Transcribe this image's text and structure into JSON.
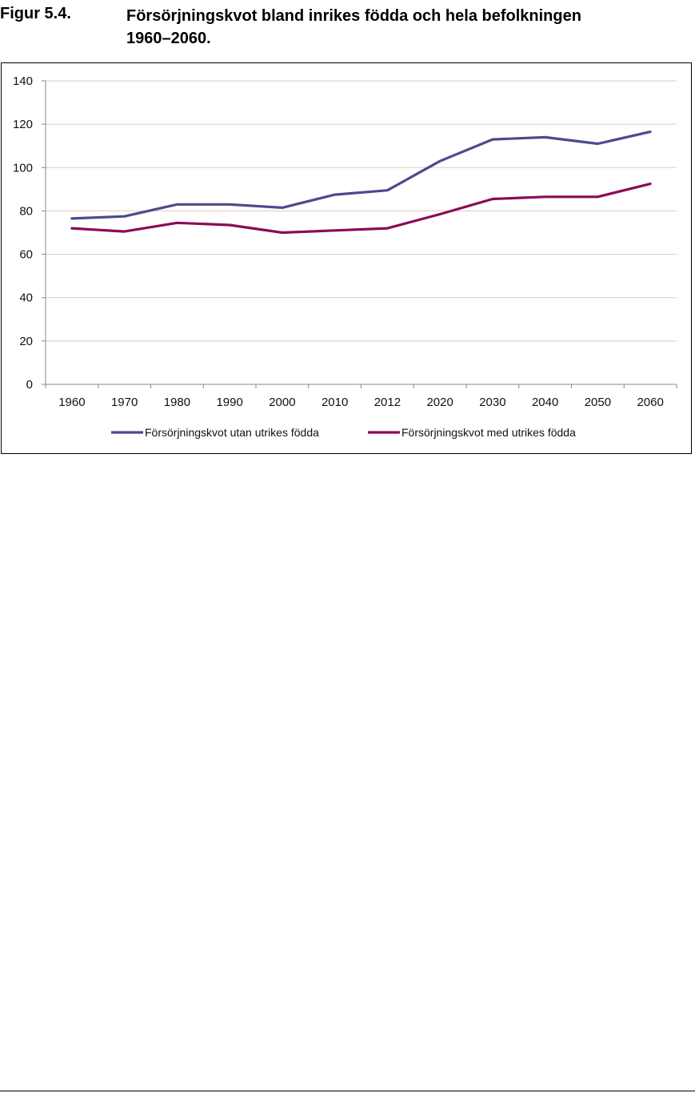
{
  "figure": {
    "number": "Figur 5.4.",
    "title_line1": "Försörjningskvot bland inrikes födda och hela befolkningen",
    "title_line2": "1960–2060."
  },
  "chart_data": {
    "type": "line",
    "title": "",
    "xlabel": "",
    "ylabel": "",
    "categories": [
      "1960",
      "1970",
      "1980",
      "1990",
      "2000",
      "2010",
      "2012",
      "2020",
      "2030",
      "2040",
      "2050",
      "2060"
    ],
    "ylim": [
      0,
      140
    ],
    "yticks": [
      0,
      20,
      40,
      60,
      80,
      100,
      120,
      140
    ],
    "grid": true,
    "legend_position": "bottom",
    "series": [
      {
        "name": "Försörjningskvot utan utrikes födda",
        "color": "#4b4b8f",
        "values": [
          76.5,
          77.5,
          83,
          83,
          81.5,
          87.5,
          89.5,
          103,
          113,
          114,
          111,
          116.5
        ]
      },
      {
        "name": "Försörjningskvot med utrikes födda",
        "color": "#8b0a57",
        "values": [
          72,
          70.5,
          74.5,
          73.5,
          70,
          71,
          72,
          78.5,
          85.5,
          86.5,
          86.5,
          92.5
        ]
      }
    ]
  }
}
